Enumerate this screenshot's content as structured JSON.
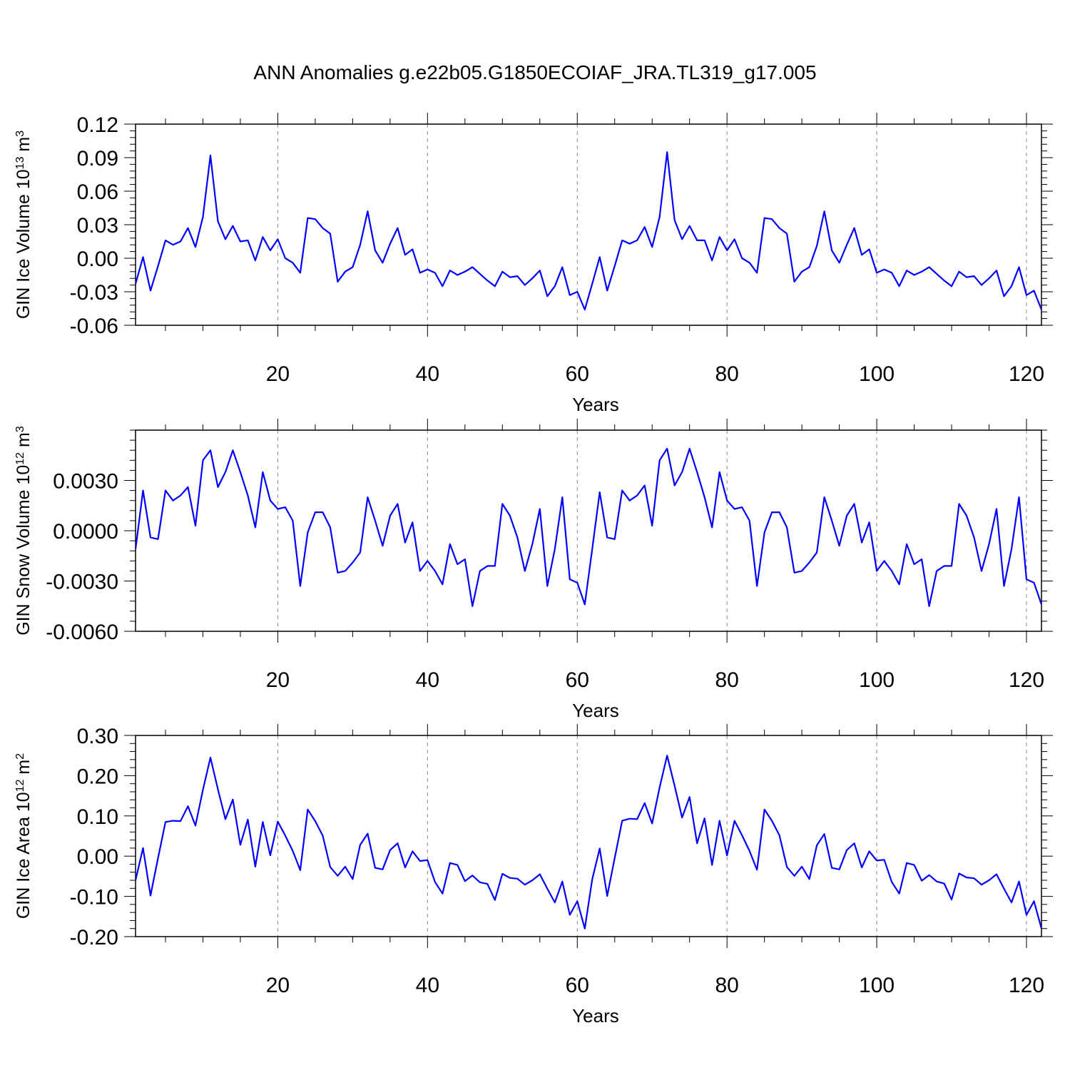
{
  "title": "ANN Anomalies g.e22b05.G1850ECOIAF_JRA.TL319_g17.005",
  "line_color": "#0000ff",
  "grid_color": "#888888",
  "chart_data": [
    {
      "type": "line",
      "ylabel": {
        "text": "GIN Ice Volume 10",
        "exp": "13",
        "unit": " m",
        "unit_exp": "3"
      },
      "xlabel": "Years",
      "xlim": [
        1,
        122
      ],
      "ylim": [
        -0.06,
        0.12
      ],
      "yticks": [
        -0.06,
        -0.03,
        0.0,
        0.03,
        0.06,
        0.09,
        0.12
      ],
      "ytick_labels": [
        "-0.06",
        "-0.03",
        "0.00",
        "0.03",
        "0.06",
        "0.09",
        "0.12"
      ],
      "xticks": [
        20,
        40,
        60,
        80,
        100,
        120
      ],
      "xtick_labels": [
        "20",
        "40",
        "60",
        "80",
        "100",
        "120"
      ],
      "grid": "x",
      "x_start": 1,
      "values": [
        -0.023,
        0.001,
        -0.029,
        -0.007,
        0.016,
        0.012,
        0.015,
        0.027,
        0.01,
        0.037,
        0.092,
        0.033,
        0.017,
        0.029,
        0.015,
        0.016,
        -0.002,
        0.019,
        0.007,
        0.017,
        0.0,
        -0.004,
        -0.013,
        0.036,
        0.035,
        0.027,
        0.022,
        -0.021,
        -0.012,
        -0.008,
        0.012,
        0.042,
        0.007,
        -0.004,
        0.013,
        0.027,
        0.003,
        0.008,
        -0.013,
        -0.01,
        -0.013,
        -0.025,
        -0.011,
        -0.015,
        -0.012,
        -0.008,
        -0.014,
        -0.02,
        -0.025,
        -0.012,
        -0.017,
        -0.016,
        -0.024,
        -0.018,
        -0.011,
        -0.034,
        -0.025,
        -0.008,
        -0.033,
        -0.03,
        -0.046,
        -0.023,
        0.001,
        -0.029,
        -0.007,
        0.016,
        0.013,
        0.016,
        0.028,
        0.01,
        0.037,
        0.095,
        0.034,
        0.017,
        0.029,
        0.016,
        0.016,
        -0.002,
        0.019,
        0.007,
        0.017,
        0.0,
        -0.004,
        -0.013,
        0.036,
        0.035,
        0.027,
        0.022,
        -0.021,
        -0.012,
        -0.008,
        0.011,
        0.042,
        0.007,
        -0.004,
        0.012,
        0.027,
        0.003,
        0.008,
        -0.013,
        -0.01,
        -0.013,
        -0.025,
        -0.011,
        -0.015,
        -0.012,
        -0.008,
        -0.014,
        -0.02,
        -0.025,
        -0.012,
        -0.017,
        -0.016,
        -0.024,
        -0.018,
        -0.011,
        -0.034,
        -0.025,
        -0.008,
        -0.033,
        -0.029,
        -0.046
      ]
    },
    {
      "type": "line",
      "ylabel": {
        "text": "GIN Snow Volume 10",
        "exp": "12",
        "unit": " m",
        "unit_exp": "3"
      },
      "xlabel": "Years",
      "xlim": [
        1,
        122
      ],
      "ylim": [
        -0.006,
        0.006
      ],
      "yticks": [
        -0.006,
        -0.003,
        0.0,
        0.003
      ],
      "ytick_labels": [
        "-0.0060",
        "-0.0030",
        "0.0000",
        "0.0030"
      ],
      "xticks": [
        20,
        40,
        60,
        80,
        100,
        120
      ],
      "xtick_labels": [
        "20",
        "40",
        "60",
        "80",
        "100",
        "120"
      ],
      "grid": "x",
      "x_start": 1,
      "values": [
        -0.0011,
        0.0024,
        -0.0004,
        -0.0005,
        0.0024,
        0.0018,
        0.0021,
        0.0026,
        0.0003,
        0.0042,
        0.0048,
        0.0026,
        0.0035,
        0.0048,
        0.0035,
        0.0021,
        0.0002,
        0.0035,
        0.0018,
        0.0013,
        0.0014,
        0.0006,
        -0.0033,
        -0.0001,
        0.0011,
        0.0011,
        0.0002,
        -0.0025,
        -0.0024,
        -0.0019,
        -0.0013,
        0.002,
        0.0006,
        -0.0009,
        0.0009,
        0.0016,
        -0.0007,
        0.0005,
        -0.0024,
        -0.0018,
        -0.0024,
        -0.0032,
        -0.0008,
        -0.002,
        -0.0017,
        -0.0045,
        -0.0024,
        -0.0021,
        -0.0021,
        0.0016,
        0.0009,
        -0.0004,
        -0.0024,
        -0.0008,
        0.0013,
        -0.0033,
        -0.0011,
        0.002,
        -0.0029,
        -0.0031,
        -0.0044,
        -0.0011,
        0.0023,
        -0.0004,
        -0.0005,
        0.0024,
        0.0018,
        0.0021,
        0.0027,
        0.0003,
        0.0042,
        0.0049,
        0.0027,
        0.0035,
        0.0049,
        0.0035,
        0.002,
        0.0002,
        0.0035,
        0.0018,
        0.0013,
        0.0014,
        0.0006,
        -0.0033,
        -0.0001,
        0.0011,
        0.0011,
        0.0002,
        -0.0025,
        -0.0024,
        -0.0019,
        -0.0013,
        0.002,
        0.0006,
        -0.0009,
        0.0009,
        0.0016,
        -0.0007,
        0.0005,
        -0.0024,
        -0.0018,
        -0.0024,
        -0.0032,
        -0.0008,
        -0.002,
        -0.0017,
        -0.0045,
        -0.0024,
        -0.0021,
        -0.0021,
        0.0016,
        0.0009,
        -0.0004,
        -0.0024,
        -0.0008,
        0.0013,
        -0.0033,
        -0.0011,
        0.002,
        -0.0029,
        -0.0031,
        -0.0044
      ]
    },
    {
      "type": "line",
      "ylabel": {
        "text": "GIN Ice Area 10",
        "exp": "12",
        "unit": " m",
        "unit_exp": "2"
      },
      "xlabel": "Years",
      "xlim": [
        1,
        122
      ],
      "ylim": [
        -0.2,
        0.3
      ],
      "yticks": [
        -0.2,
        -0.1,
        0.0,
        0.1,
        0.2,
        0.3
      ],
      "ytick_labels": [
        "-0.20",
        "-0.10",
        "0.00",
        "0.10",
        "0.20",
        "0.30"
      ],
      "xticks": [
        20,
        40,
        60,
        80,
        100,
        120
      ],
      "xtick_labels": [
        "20",
        "40",
        "60",
        "80",
        "100",
        "120"
      ],
      "grid": "x",
      "x_start": 1,
      "values": [
        -0.06,
        0.02,
        -0.098,
        -0.005,
        0.085,
        0.088,
        0.087,
        0.124,
        0.076,
        0.165,
        0.245,
        0.166,
        0.092,
        0.141,
        0.028,
        0.091,
        -0.026,
        0.085,
        0.002,
        0.086,
        0.051,
        0.013,
        -0.035,
        0.116,
        0.087,
        0.051,
        -0.027,
        -0.049,
        -0.026,
        -0.057,
        0.028,
        0.056,
        -0.029,
        -0.033,
        0.015,
        0.032,
        -0.028,
        0.012,
        -0.012,
        -0.01,
        -0.064,
        -0.093,
        -0.017,
        -0.022,
        -0.062,
        -0.048,
        -0.065,
        -0.069,
        -0.109,
        -0.044,
        -0.054,
        -0.056,
        -0.071,
        -0.06,
        -0.045,
        -0.081,
        -0.115,
        -0.063,
        -0.146,
        -0.112,
        -0.18,
        -0.058,
        0.019,
        -0.099,
        -0.005,
        0.088,
        0.093,
        0.092,
        0.132,
        0.081,
        0.171,
        0.25,
        0.175,
        0.096,
        0.147,
        0.032,
        0.094,
        -0.022,
        0.088,
        0.002,
        0.088,
        0.052,
        0.013,
        -0.034,
        0.116,
        0.088,
        0.052,
        -0.027,
        -0.049,
        -0.026,
        -0.057,
        0.027,
        0.055,
        -0.029,
        -0.033,
        0.015,
        0.032,
        -0.028,
        0.012,
        -0.011,
        -0.009,
        -0.064,
        -0.093,
        -0.017,
        -0.022,
        -0.061,
        -0.047,
        -0.063,
        -0.068,
        -0.108,
        -0.043,
        -0.053,
        -0.055,
        -0.071,
        -0.06,
        -0.045,
        -0.081,
        -0.115,
        -0.063,
        -0.146,
        -0.112,
        -0.18
      ]
    }
  ]
}
